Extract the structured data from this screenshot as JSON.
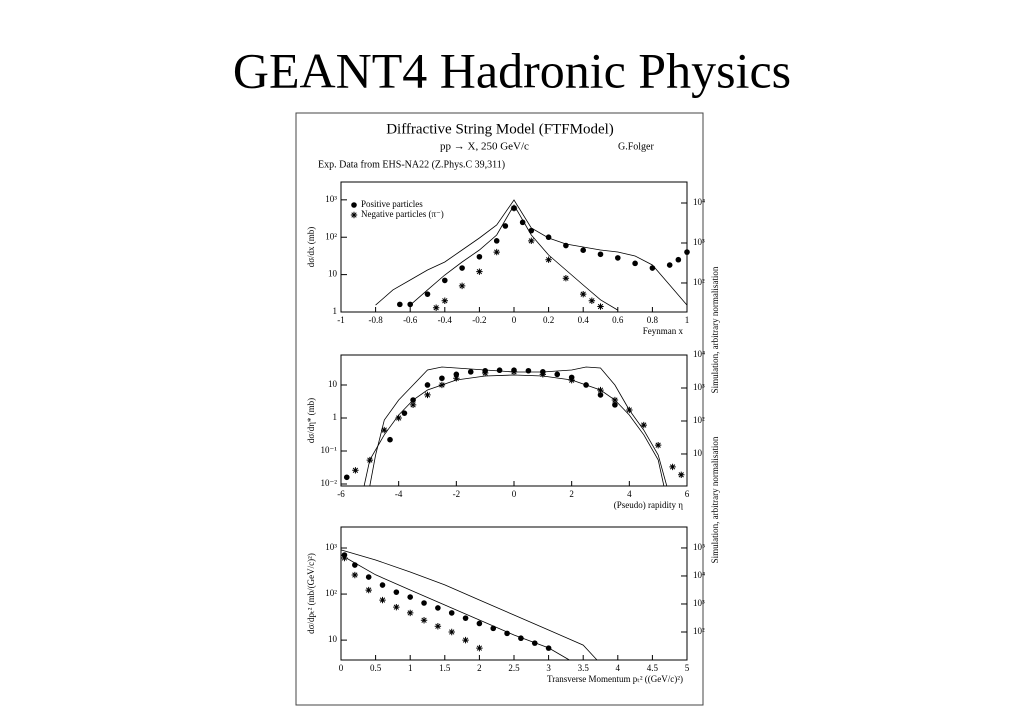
{
  "title": "GEANT4 Hadronic Physics",
  "figure": {
    "title": "Diffractive String Model (FTFModel)",
    "subtitle": "pp → X, 250 GeV/c",
    "author": "G.Folger",
    "note": "Exp. Data from EHS-NA22 (Z.Phys.C 39,311)"
  },
  "chart_data": [
    {
      "type": "scatter",
      "x_label": "Feynman x",
      "y_label": "dσ/dx (mb)",
      "y2_label": "Simulation, arbitrary normalisation",
      "xlim": [
        -1,
        1
      ],
      "xticks": [
        -1,
        -0.8,
        -0.6,
        -0.4,
        -0.2,
        0,
        0.2,
        0.4,
        0.6,
        0.8,
        1
      ],
      "ylim": [
        1,
        3000
      ],
      "yticks": [
        1,
        10,
        {
          "value": 100,
          "label": "10²"
        },
        {
          "value": 1000,
          "label": "10³"
        }
      ],
      "y2lim": [
        18.8,
        33500
      ],
      "y2ticks": [
        {
          "value": 100,
          "label": "10²"
        },
        {
          "value": 1000,
          "label": "10³"
        },
        {
          "value": 10000,
          "label": "10⁴"
        }
      ],
      "log_y": true,
      "legend": "upper-left",
      "series": [
        {
          "name": "Positive particles",
          "marker": "circle",
          "color": "#000000",
          "x": [
            -0.66,
            -0.6,
            -0.5,
            -0.4,
            -0.3,
            -0.2,
            -0.1,
            -0.05,
            0,
            0.05,
            0.1,
            0.2,
            0.3,
            0.4,
            0.5,
            0.6,
            0.7,
            0.8,
            0.9,
            0.95,
            1
          ],
          "values": [
            1.6,
            1.6,
            3,
            7,
            15,
            30,
            80,
            200,
            600,
            250,
            150,
            100,
            60,
            45,
            35,
            28,
            20,
            15,
            18,
            25,
            40
          ]
        },
        {
          "name": "Negative particles (π⁻)",
          "marker": "star",
          "color": "#000000",
          "x": [
            -0.45,
            -0.4,
            -0.3,
            -0.2,
            -0.1,
            0,
            0.1,
            0.2,
            0.3,
            0.4,
            0.45,
            0.5
          ],
          "values": [
            1.3,
            2,
            5,
            12,
            40,
            600,
            80,
            25,
            8,
            3,
            2,
            1.4
          ]
        },
        {
          "marker": "line",
          "axis": "y2",
          "color": "#000000",
          "x": [
            -0.8,
            -0.7,
            -0.6,
            -0.5,
            -0.4,
            -0.3,
            -0.2,
            -0.1,
            0,
            0.1,
            0.2,
            0.3,
            0.4,
            0.5,
            0.6,
            0.7,
            0.8,
            0.9,
            1
          ],
          "values": [
            28,
            67,
            119,
            211,
            335,
            668,
            1330,
            2820,
            11900,
            2370,
            1330,
            944,
            794,
            668,
            596,
            473,
            282,
            89,
            28
          ]
        },
        {
          "marker": "line",
          "axis": "y2",
          "color": "#000000",
          "x": [
            -0.6,
            -0.5,
            -0.4,
            -0.3,
            -0.2,
            -0.1,
            0,
            0.1,
            0.2,
            0.3,
            0.4,
            0.5,
            0.6
          ],
          "values": [
            28,
            67,
            158,
            335,
            668,
            1585,
            8910,
            1585,
            501,
            211,
            89,
            38,
            21
          ]
        }
      ]
    },
    {
      "type": "scatter",
      "x_label": "(Pseudo) rapidity η",
      "y_label": "dσ/dη* (mb)",
      "y2_label": "Simulation, arbitrary normalisation",
      "xlim": [
        -6,
        6
      ],
      "xticks": [
        -6,
        -4,
        -2,
        0,
        2,
        4,
        6
      ],
      "ylim": [
        0.0087,
        81
      ],
      "yticks": [
        {
          "value": 0.01,
          "label": "10⁻²"
        },
        {
          "value": 0.1,
          "label": "10⁻¹"
        },
        1,
        10
      ],
      "y2lim": [
        1.07,
        10000
      ],
      "y2ticks": [
        10,
        {
          "value": 100,
          "label": "10²"
        },
        {
          "value": 1000,
          "label": "10³"
        },
        {
          "value": 10000,
          "label": "10⁴"
        }
      ],
      "log_y": true,
      "series": [
        {
          "marker": "circle",
          "color": "#000000",
          "x": [
            -5.8,
            -4.3,
            -3.8,
            -3.5,
            -3,
            -2.5,
            -2,
            -1.5,
            -1,
            -0.5,
            0,
            0.5,
            1,
            1.5,
            2,
            2.5,
            3,
            3.5
          ],
          "values": [
            0.016,
            0.22,
            1.4,
            3.5,
            10,
            16,
            21,
            25,
            27,
            28,
            28,
            27,
            25,
            21,
            17,
            10,
            5,
            2.5
          ]
        },
        {
          "marker": "star",
          "color": "#000000",
          "x": [
            -5.5,
            -5,
            -4.5,
            -4,
            -3.5,
            -3,
            -2.5,
            -2,
            -1,
            0,
            1,
            2,
            3,
            3.5,
            4,
            4.5,
            5,
            5.5,
            5.8
          ],
          "values": [
            0.026,
            0.053,
            0.43,
            1,
            2.5,
            5,
            10,
            16,
            23,
            25,
            21,
            14,
            7,
            3.5,
            1.75,
            0.61,
            0.15,
            0.033,
            0.019
          ]
        },
        {
          "marker": "line",
          "axis": "y2",
          "color": "#000000",
          "x": [
            -5,
            -4.8,
            -4.5,
            -4,
            -3.5,
            -3,
            -2.5,
            -2,
            -1,
            0,
            1,
            2,
            2.5,
            3,
            3.5,
            4,
            4.5,
            5,
            5.3
          ],
          "values": [
            1.07,
            9.3,
            107,
            433,
            1230,
            3510,
            4330,
            4040,
            3510,
            3050,
            3050,
            3510,
            4330,
            4040,
            1230,
            215,
            53,
            9.3,
            1.07
          ]
        },
        {
          "marker": "line",
          "axis": "y2",
          "color": "#000000",
          "x": [
            -5.2,
            -5,
            -4.5,
            -4,
            -3.5,
            -3,
            -2,
            -1,
            0,
            1,
            2,
            3,
            3.5,
            4,
            4.5,
            5,
            5.2
          ],
          "values": [
            1.07,
            6.6,
            38,
            152,
            433,
            869,
            1750,
            2310,
            2480,
            2310,
            1750,
            869,
            433,
            152,
            38,
            6.6,
            1.07
          ]
        }
      ]
    },
    {
      "type": "scatter",
      "x_label": "Transverse Momentum pₜ² ((GeV/c)²)",
      "y_label": "dσ/dpₜ² (mb/(GeV/c)²)",
      "xlim": [
        0,
        5
      ],
      "xticks": [
        0,
        0.5,
        1,
        1.5,
        2,
        2.5,
        3,
        3.5,
        4,
        4.5,
        5
      ],
      "ylim": [
        3.7,
        2860
      ],
      "yticks": [
        10,
        {
          "value": 100,
          "label": "10²"
        },
        {
          "value": 1000,
          "label": "10³"
        }
      ],
      "y2lim": [
        10,
        560000
      ],
      "y2ticks": [
        {
          "value": 100,
          "label": "10²"
        },
        {
          "value": 1000,
          "label": "10³"
        },
        {
          "value": 10000,
          "label": "10⁴"
        },
        {
          "value": 100000,
          "label": "10⁵"
        }
      ],
      "log_y": true,
      "series": [
        {
          "marker": "circle",
          "color": "#000000",
          "x": [
            0.05,
            0.2,
            0.4,
            0.6,
            0.8,
            1,
            1.2,
            1.4,
            1.6,
            1.8,
            2,
            2.2,
            2.4,
            2.6,
            2.8,
            3
          ],
          "values": [
            705,
            427,
            234,
            157,
            110,
            86,
            64,
            50,
            39,
            30,
            23,
            18,
            14,
            11,
            8.6,
            6.7
          ]
        },
        {
          "marker": "star",
          "color": "#000000",
          "x": [
            0.05,
            0.2,
            0.4,
            0.6,
            0.8,
            1,
            1.2,
            1.4,
            1.6,
            1.8,
            2
          ],
          "values": [
            607,
            259,
            122,
            74,
            52,
            39,
            27,
            20,
            15,
            10,
            6.7
          ]
        },
        {
          "marker": "line",
          "axis": "y2",
          "color": "#000000",
          "x": [
            0,
            0.5,
            1,
            1.5,
            2,
            2.5,
            3,
            3.5,
            3.7
          ],
          "values": [
            85000,
            37300,
            13900,
            4790,
            1390,
            405,
            118,
            34,
            10
          ]
        },
        {
          "marker": "line",
          "axis": "y2",
          "color": "#000000",
          "x": [
            0,
            0.5,
            1,
            1.5,
            2,
            2.5,
            3,
            3.3
          ],
          "values": [
            56000,
            11000,
            3160,
            916,
            268,
            78,
            27,
            10
          ]
        }
      ]
    }
  ]
}
